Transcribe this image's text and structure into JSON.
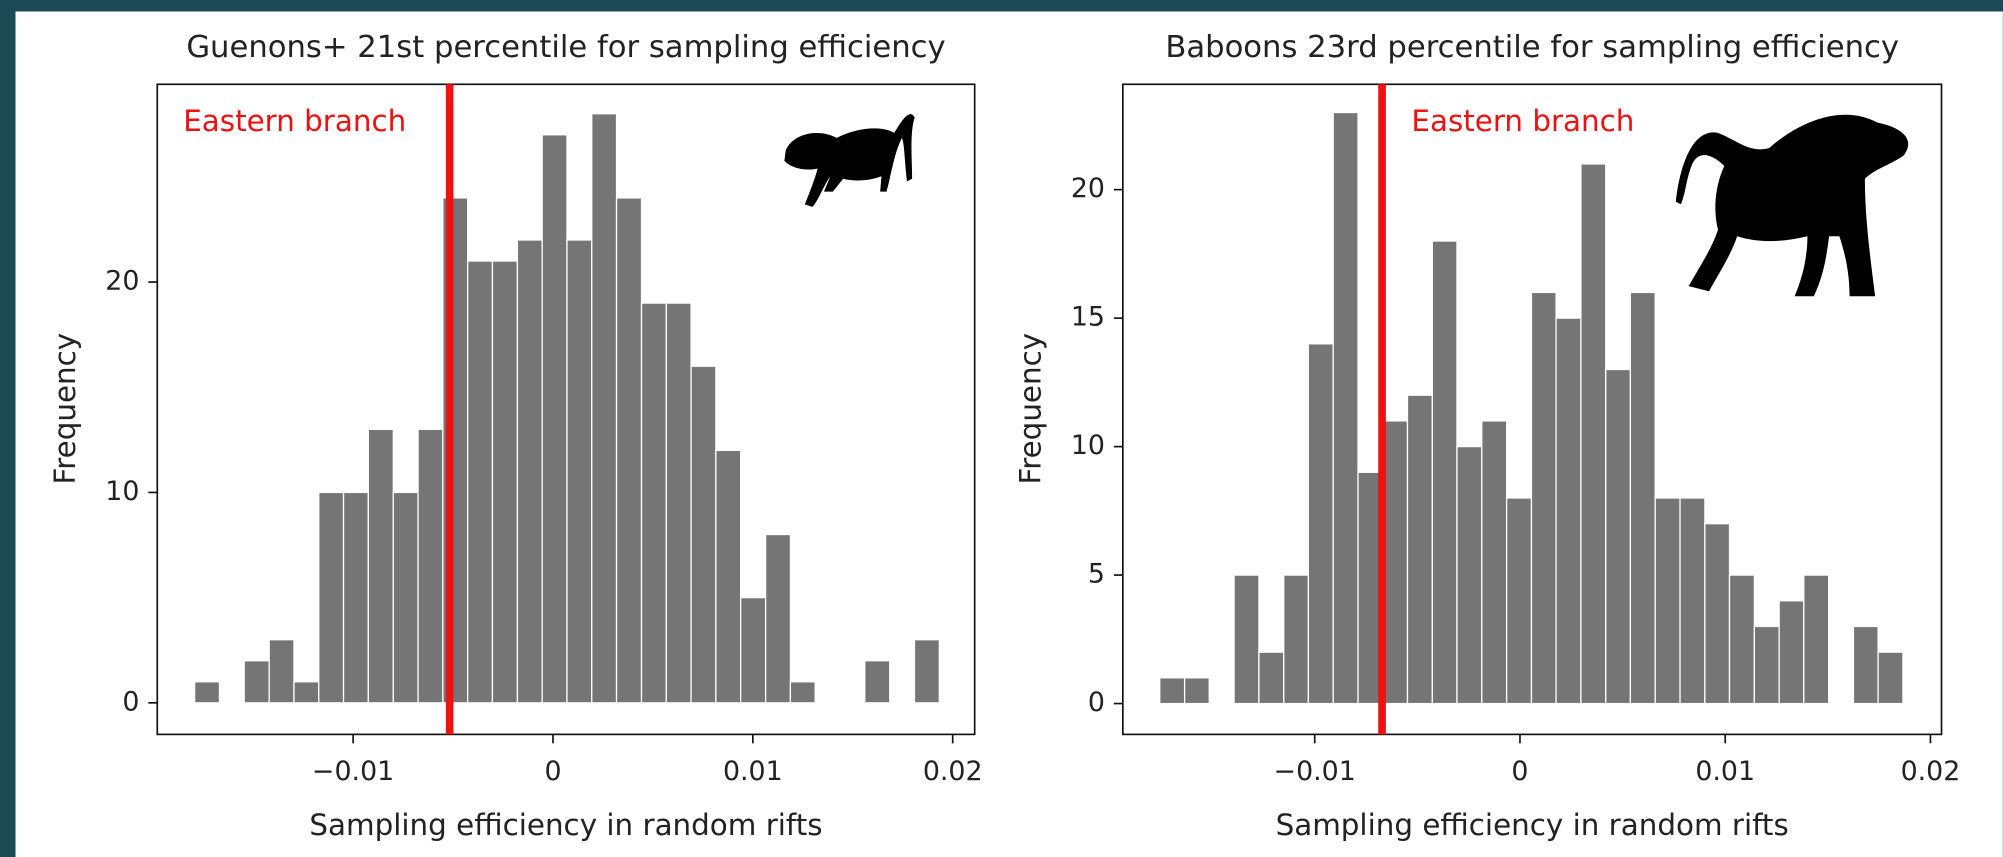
{
  "chart_data": [
    {
      "type": "histogram",
      "title": "Guenons+ 21st percentile for sampling efficiency",
      "xlabel": "Sampling efficiency in random rifts",
      "ylabel": "Frequency",
      "color": "#757575",
      "bins": [
        -0.01793,
        -0.01669,
        -0.01545,
        -0.0142,
        -0.01296,
        -0.01172,
        -0.01048,
        -0.00924,
        -0.00799,
        -0.00675,
        -0.00551,
        -0.00427,
        -0.00303,
        -0.00178,
        -0.00054,
        0.0007,
        0.00194,
        0.00318,
        0.00443,
        0.00567,
        0.00691,
        0.00815,
        0.00939,
        0.01064,
        0.01188,
        0.01312,
        0.01436,
        0.0156,
        0.01685,
        0.01809,
        0.01933
      ],
      "values": [
        1,
        0,
        2,
        3,
        1,
        10,
        10,
        13,
        10,
        13,
        24,
        21,
        21,
        22,
        27,
        22,
        28,
        24,
        19,
        19,
        16,
        12,
        5,
        8,
        1,
        0,
        0,
        2,
        0,
        3
      ],
      "xlim": [
        -0.0198,
        0.0211
      ],
      "ylim": [
        -1.5,
        29.4
      ],
      "xticks": [
        {
          "value": -0.01,
          "label": "−0.01"
        },
        0,
        0.01,
        0.02
      ],
      "yticks": [
        0,
        10,
        20
      ],
      "annotation": {
        "text": "Eastern branch",
        "x": -0.00517,
        "color": "#ee1111"
      }
    },
    {
      "type": "histogram",
      "title": "Baboons 23rd percentile for sampling efficiency",
      "xlabel": "Sampling efficiency in random rifts",
      "ylabel": "Frequency",
      "color": "#757575",
      "bins": [
        -0.01755,
        -0.01634,
        -0.01514,
        -0.01393,
        -0.01272,
        -0.01151,
        -0.01031,
        -0.0091,
        -0.00789,
        -0.00669,
        -0.00548,
        -0.00427,
        -0.00307,
        -0.00186,
        -0.00065,
        0.00056,
        0.00176,
        0.00297,
        0.00418,
        0.00538,
        0.00659,
        0.0078,
        0.00901,
        0.01021,
        0.01142,
        0.01263,
        0.01383,
        0.01504,
        0.01625,
        0.01745,
        0.01866
      ],
      "values": [
        1,
        1,
        0,
        5,
        2,
        5,
        14,
        23,
        9,
        11,
        12,
        18,
        10,
        11,
        8,
        16,
        15,
        21,
        13,
        16,
        8,
        8,
        7,
        5,
        3,
        4,
        5,
        0,
        3,
        2
      ],
      "xlim": [
        -0.01935,
        0.02054
      ],
      "ylim": [
        -1.2,
        24.1
      ],
      "xticks": [
        {
          "value": -0.01,
          "label": "−0.01"
        },
        0,
        0.01,
        0.02
      ],
      "yticks": [
        0,
        5,
        10,
        15,
        20
      ],
      "annotation": {
        "text": "Eastern branch",
        "x": -0.00672,
        "color": "#ee1111"
      }
    }
  ]
}
